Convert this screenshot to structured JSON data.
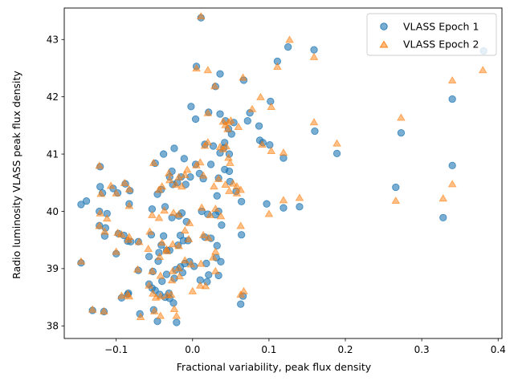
{
  "chart_data": {
    "type": "scatter",
    "title": "",
    "xlabel": "Fractional variability, peak flux density",
    "ylabel": "Radio luminosity VLASS peak flux density",
    "xlim": [
      -0.168,
      0.405
    ],
    "ylim": [
      37.78,
      43.55
    ],
    "grid": false,
    "legend_position": "top-right",
    "x_ticks": [
      {
        "value": -0.1,
        "label": "−0.1"
      },
      {
        "value": 0.0,
        "label": "0.0"
      },
      {
        "value": 0.1,
        "label": "0.1"
      },
      {
        "value": 0.2,
        "label": "0.2"
      },
      {
        "value": 0.3,
        "label": "0.3"
      },
      {
        "value": 0.4,
        "label": "0.4"
      }
    ],
    "y_ticks": [
      {
        "value": 38,
        "label": "38"
      },
      {
        "value": 39,
        "label": "39"
      },
      {
        "value": 40,
        "label": "40"
      },
      {
        "value": 41,
        "label": "41"
      },
      {
        "value": 42,
        "label": "42"
      },
      {
        "value": 43,
        "label": "43"
      }
    ],
    "series": [
      {
        "name": "VLASS Epoch 1",
        "marker": "circle",
        "color": "#1f77b4",
        "points": [
          [
            0.011,
            43.38
          ],
          [
            0.005,
            42.53
          ],
          [
            0.036,
            42.4
          ],
          [
            0.03,
            42.18
          ],
          [
            0.067,
            42.29
          ],
          [
            0.125,
            42.87
          ],
          [
            0.159,
            42.82
          ],
          [
            0.381,
            42.8
          ],
          [
            0.111,
            42.62
          ],
          [
            0.34,
            41.96
          ],
          [
            0.102,
            41.92
          ],
          [
            -0.002,
            41.83
          ],
          [
            0.021,
            41.73
          ],
          [
            0.036,
            41.7
          ],
          [
            0.075,
            41.72
          ],
          [
            0.004,
            41.61
          ],
          [
            0.043,
            41.58
          ],
          [
            0.054,
            41.55
          ],
          [
            0.072,
            41.58
          ],
          [
            0.087,
            41.49
          ],
          [
            0.047,
            41.44
          ],
          [
            0.051,
            41.35
          ],
          [
            0.16,
            41.4
          ],
          [
            0.273,
            41.37
          ],
          [
            0.042,
            41.2
          ],
          [
            0.088,
            41.24
          ],
          [
            0.092,
            41.2
          ],
          [
            0.101,
            41.16
          ],
          [
            0.016,
            41.17
          ],
          [
            0.027,
            41.14
          ],
          [
            0.041,
            41.11
          ],
          [
            -0.024,
            41.1
          ],
          [
            -0.038,
            41.0
          ],
          [
            0.036,
            41.02
          ],
          [
            0.048,
            41.0
          ],
          [
            0.119,
            40.93
          ],
          [
            0.189,
            41.01
          ],
          [
            -0.049,
            40.84
          ],
          [
            -0.011,
            40.92
          ],
          [
            0.004,
            40.82
          ],
          [
            0.024,
            40.82
          ],
          [
            0.042,
            40.73
          ],
          [
            0.048,
            40.7
          ],
          [
            0.34,
            40.8
          ],
          [
            -0.027,
            40.7
          ],
          [
            -0.03,
            40.6
          ],
          [
            -0.015,
            40.6
          ],
          [
            -0.003,
            40.6
          ],
          [
            0.009,
            40.66
          ],
          [
            0.014,
            40.57
          ],
          [
            0.034,
            40.58
          ],
          [
            -0.02,
            40.5
          ],
          [
            -0.009,
            40.47
          ],
          [
            -0.026,
            40.47
          ],
          [
            0.049,
            40.52
          ],
          [
            -0.046,
            40.3
          ],
          [
            -0.041,
            40.38
          ],
          [
            0.032,
            40.27
          ],
          [
            0.057,
            40.35
          ],
          [
            0.064,
            40.17
          ],
          [
            -0.146,
            40.12
          ],
          [
            -0.139,
            40.18
          ],
          [
            -0.121,
            40.43
          ],
          [
            -0.118,
            40.32
          ],
          [
            -0.104,
            40.4
          ],
          [
            -0.098,
            40.32
          ],
          [
            -0.088,
            40.48
          ],
          [
            -0.082,
            40.36
          ],
          [
            -0.083,
            40.13
          ],
          [
            -0.121,
            40.78
          ],
          [
            -0.036,
            40.08
          ],
          [
            -0.053,
            40.04
          ],
          [
            -0.018,
            39.92
          ],
          [
            -0.027,
            39.89
          ],
          [
            -0.014,
            39.97
          ],
          [
            -0.008,
            39.82
          ],
          [
            0.012,
            40.0
          ],
          [
            0.02,
            39.95
          ],
          [
            0.034,
            40.0
          ],
          [
            0.03,
            39.94
          ],
          [
            0.038,
            39.76
          ],
          [
            0.097,
            40.13
          ],
          [
            0.119,
            40.06
          ],
          [
            0.14,
            40.08
          ],
          [
            0.266,
            40.42
          ],
          [
            0.328,
            39.89
          ],
          [
            -0.122,
            40.0
          ],
          [
            -0.112,
            39.96
          ],
          [
            -0.122,
            39.75
          ],
          [
            -0.114,
            39.71
          ],
          [
            -0.115,
            39.57
          ],
          [
            -0.097,
            39.61
          ],
          [
            -0.09,
            39.58
          ],
          [
            -0.085,
            39.48
          ],
          [
            -0.081,
            39.47
          ],
          [
            -0.071,
            39.47
          ],
          [
            -0.054,
            39.59
          ],
          [
            -0.041,
            39.41
          ],
          [
            -0.038,
            39.57
          ],
          [
            -0.034,
            39.32
          ],
          [
            -0.019,
            39.41
          ],
          [
            -0.016,
            39.58
          ],
          [
            -0.012,
            39.49
          ],
          [
            -0.006,
            39.49
          ],
          [
            0.016,
            39.55
          ],
          [
            0.024,
            39.53
          ],
          [
            0.032,
            39.4
          ],
          [
            0.064,
            39.59
          ],
          [
            -0.1,
            39.26
          ],
          [
            -0.057,
            39.21
          ],
          [
            -0.044,
            39.28
          ],
          [
            -0.03,
            39.32
          ],
          [
            -0.045,
            39.13
          ],
          [
            -0.034,
            38.9
          ],
          [
            -0.022,
            38.98
          ],
          [
            -0.016,
            39.03
          ],
          [
            -0.01,
            39.09
          ],
          [
            -0.004,
            39.12
          ],
          [
            0.002,
            39.04
          ],
          [
            0.018,
            39.09
          ],
          [
            0.031,
            39.19
          ],
          [
            0.037,
            39.12
          ],
          [
            -0.146,
            39.1
          ],
          [
            -0.071,
            38.97
          ],
          [
            -0.052,
            38.95
          ],
          [
            -0.04,
            38.78
          ],
          [
            -0.024,
            38.83
          ],
          [
            -0.013,
            38.93
          ],
          [
            0.01,
            38.8
          ],
          [
            0.019,
            38.77
          ],
          [
            0.021,
            38.89
          ],
          [
            0.034,
            38.88
          ],
          [
            -0.093,
            38.49
          ],
          [
            -0.084,
            38.57
          ],
          [
            -0.085,
            38.55
          ],
          [
            -0.057,
            38.73
          ],
          [
            -0.053,
            38.66
          ],
          [
            -0.049,
            38.62
          ],
          [
            -0.043,
            38.55
          ],
          [
            -0.036,
            38.5
          ],
          [
            -0.031,
            38.57
          ],
          [
            -0.03,
            38.48
          ],
          [
            -0.025,
            38.4
          ],
          [
            0.063,
            38.38
          ],
          [
            0.066,
            38.52
          ],
          [
            -0.131,
            38.27
          ],
          [
            -0.116,
            38.25
          ],
          [
            -0.069,
            38.21
          ],
          [
            -0.051,
            38.28
          ],
          [
            -0.046,
            38.08
          ],
          [
            -0.021,
            38.06
          ]
        ]
      },
      {
        "name": "VLASS Epoch 2",
        "marker": "triangle",
        "color": "#ff7f0e",
        "points": [
          [
            0.011,
            43.4
          ],
          [
            0.127,
            42.99
          ],
          [
            0.159,
            42.69
          ],
          [
            0.111,
            42.52
          ],
          [
            0.38,
            42.46
          ],
          [
            0.02,
            42.46
          ],
          [
            0.005,
            42.49
          ],
          [
            0.34,
            42.28
          ],
          [
            0.066,
            42.33
          ],
          [
            0.029,
            42.18
          ],
          [
            0.089,
            41.99
          ],
          [
            0.103,
            41.82
          ],
          [
            0.078,
            41.78
          ],
          [
            0.02,
            41.71
          ],
          [
            0.159,
            41.55
          ],
          [
            0.05,
            41.58
          ],
          [
            0.04,
            41.56
          ],
          [
            0.273,
            41.63
          ],
          [
            0.043,
            41.5
          ],
          [
            0.06,
            41.47
          ],
          [
            0.047,
            41.55
          ],
          [
            0.046,
            41.43
          ],
          [
            0.091,
            41.16
          ],
          [
            0.103,
            41.05
          ],
          [
            0.119,
            41.02
          ],
          [
            0.189,
            41.18
          ],
          [
            0.044,
            41.13
          ],
          [
            0.04,
            41.08
          ],
          [
            0.036,
            41.12
          ],
          [
            0.016,
            41.14
          ],
          [
            0.02,
            41.2
          ],
          [
            0.047,
            40.93
          ],
          [
            0.049,
            40.84
          ],
          [
            0.01,
            40.85
          ],
          [
            0.005,
            40.8
          ],
          [
            -0.007,
            40.72
          ],
          [
            -0.051,
            40.84
          ],
          [
            -0.01,
            40.63
          ],
          [
            0.014,
            40.62
          ],
          [
            -0.031,
            40.66
          ],
          [
            -0.018,
            40.59
          ],
          [
            -0.03,
            40.54
          ],
          [
            -0.022,
            40.46
          ],
          [
            -0.014,
            40.43
          ],
          [
            -0.04,
            40.43
          ],
          [
            -0.044,
            40.37
          ],
          [
            0.034,
            40.56
          ],
          [
            0.028,
            40.43
          ],
          [
            0.043,
            40.46
          ],
          [
            0.053,
            40.48
          ],
          [
            0.048,
            40.35
          ],
          [
            0.058,
            40.43
          ],
          [
            0.063,
            40.37
          ],
          [
            0.058,
            40.31
          ],
          [
            0.1,
            39.95
          ],
          [
            0.119,
            40.19
          ],
          [
            0.14,
            40.23
          ],
          [
            0.266,
            40.18
          ],
          [
            0.328,
            40.22
          ],
          [
            0.34,
            40.47
          ],
          [
            -0.122,
            40.79
          ],
          [
            -0.12,
            40.3
          ],
          [
            -0.121,
            39.96
          ],
          [
            -0.107,
            40.44
          ],
          [
            -0.1,
            40.31
          ],
          [
            -0.089,
            40.49
          ],
          [
            -0.083,
            40.09
          ],
          [
            -0.083,
            40.38
          ],
          [
            -0.053,
            39.93
          ],
          [
            -0.044,
            39.88
          ],
          [
            -0.037,
            40.01
          ],
          [
            -0.025,
            39.97
          ],
          [
            -0.018,
            39.94
          ],
          [
            -0.004,
            39.79
          ],
          [
            0.012,
            40.06
          ],
          [
            0.023,
            39.93
          ],
          [
            0.03,
            40.04
          ],
          [
            0.037,
            39.91
          ],
          [
            -0.112,
            39.87
          ],
          [
            -0.122,
            39.74
          ],
          [
            -0.115,
            39.64
          ],
          [
            -0.098,
            39.62
          ],
          [
            -0.093,
            39.59
          ],
          [
            -0.084,
            39.5
          ],
          [
            -0.083,
            39.55
          ],
          [
            -0.07,
            39.46
          ],
          [
            -0.056,
            39.64
          ],
          [
            -0.04,
            39.45
          ],
          [
            -0.034,
            39.33
          ],
          [
            -0.026,
            39.42
          ],
          [
            -0.018,
            39.39
          ],
          [
            -0.01,
            39.66
          ],
          [
            -0.005,
            39.51
          ],
          [
            0.014,
            39.58
          ],
          [
            0.021,
            39.53
          ],
          [
            0.03,
            39.29
          ],
          [
            0.063,
            39.74
          ],
          [
            -0.1,
            39.29
          ],
          [
            -0.058,
            39.34
          ],
          [
            -0.043,
            39.2
          ],
          [
            -0.034,
            39.3
          ],
          [
            -0.026,
            38.95
          ],
          [
            -0.018,
            39.0
          ],
          [
            -0.01,
            39.14
          ],
          [
            -0.002,
            39.07
          ],
          [
            0.011,
            39.08
          ],
          [
            0.027,
            39.19
          ],
          [
            0.03,
            38.95
          ],
          [
            -0.146,
            39.12
          ],
          [
            -0.072,
            38.98
          ],
          [
            -0.053,
            38.95
          ],
          [
            -0.042,
            38.87
          ],
          [
            -0.027,
            38.79
          ],
          [
            -0.017,
            38.86
          ],
          [
            0.01,
            38.7
          ],
          [
            0.017,
            38.69
          ],
          [
            -0.093,
            38.52
          ],
          [
            -0.085,
            38.55
          ],
          [
            -0.083,
            38.51
          ],
          [
            -0.057,
            38.7
          ],
          [
            -0.052,
            38.56
          ],
          [
            -0.048,
            38.49
          ],
          [
            -0.042,
            38.51
          ],
          [
            -0.033,
            38.53
          ],
          [
            -0.028,
            38.54
          ],
          [
            0.063,
            38.54
          ],
          [
            0.067,
            38.6
          ],
          [
            -0.131,
            38.28
          ],
          [
            -0.116,
            38.25
          ],
          [
            -0.068,
            38.15
          ],
          [
            -0.05,
            38.25
          ],
          [
            -0.042,
            38.17
          ],
          [
            -0.024,
            38.29
          ],
          [
            -0.021,
            38.17
          ],
          [
            0.0,
            38.6
          ]
        ]
      }
    ]
  }
}
